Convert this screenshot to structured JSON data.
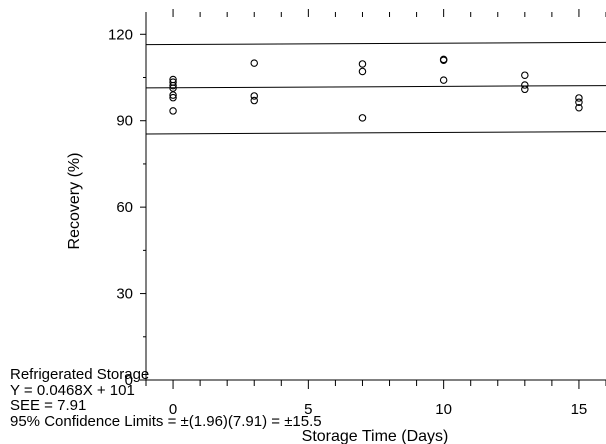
{
  "chart_data": {
    "type": "scatter",
    "title": "",
    "xlabel": "Storage Time (Days)",
    "ylabel": "Recovery (%)",
    "xlim": [
      -1,
      16
    ],
    "ylim": [
      0,
      126
    ],
    "x_ticks": [
      0,
      5,
      10,
      15
    ],
    "y_ticks": [
      0,
      30,
      60,
      90,
      120
    ],
    "grid": false,
    "points": [
      {
        "x": 0,
        "y": 104.3
      },
      {
        "x": 0,
        "y": 103.4
      },
      {
        "x": 0,
        "y": 102.2
      },
      {
        "x": 0,
        "y": 101.3
      },
      {
        "x": 0,
        "y": 98.9
      },
      {
        "x": 0,
        "y": 98.0
      },
      {
        "x": 0,
        "y": 93.4
      },
      {
        "x": 3,
        "y": 110.0
      },
      {
        "x": 3,
        "y": 98.6
      },
      {
        "x": 3,
        "y": 97.0
      },
      {
        "x": 7,
        "y": 109.7
      },
      {
        "x": 7,
        "y": 107.1
      },
      {
        "x": 7,
        "y": 91.0
      },
      {
        "x": 10,
        "y": 111.3
      },
      {
        "x": 10,
        "y": 111.0
      },
      {
        "x": 10,
        "y": 104.1
      },
      {
        "x": 13,
        "y": 105.8
      },
      {
        "x": 13,
        "y": 102.4
      },
      {
        "x": 13,
        "y": 100.9
      },
      {
        "x": 15,
        "y": 97.9
      },
      {
        "x": 15,
        "y": 96.4
      },
      {
        "x": 15,
        "y": 94.5
      }
    ],
    "lines": [
      {
        "name": "upper-limit",
        "x": [
          -1,
          16
        ],
        "y": [
          116.4,
          117.2
        ]
      },
      {
        "name": "regression",
        "x": [
          -1,
          16
        ],
        "y": [
          101.4,
          102.2
        ]
      },
      {
        "name": "lower-limit",
        "x": [
          -1,
          16
        ],
        "y": [
          85.4,
          86.2
        ]
      }
    ],
    "annotations": [
      "Refrigerated Storage",
      "Y = 0.0468X + 101",
      "SEE = 7.91",
      "95% Confidence Limits = ±(1.96)(7.91) = ±15.5"
    ]
  }
}
